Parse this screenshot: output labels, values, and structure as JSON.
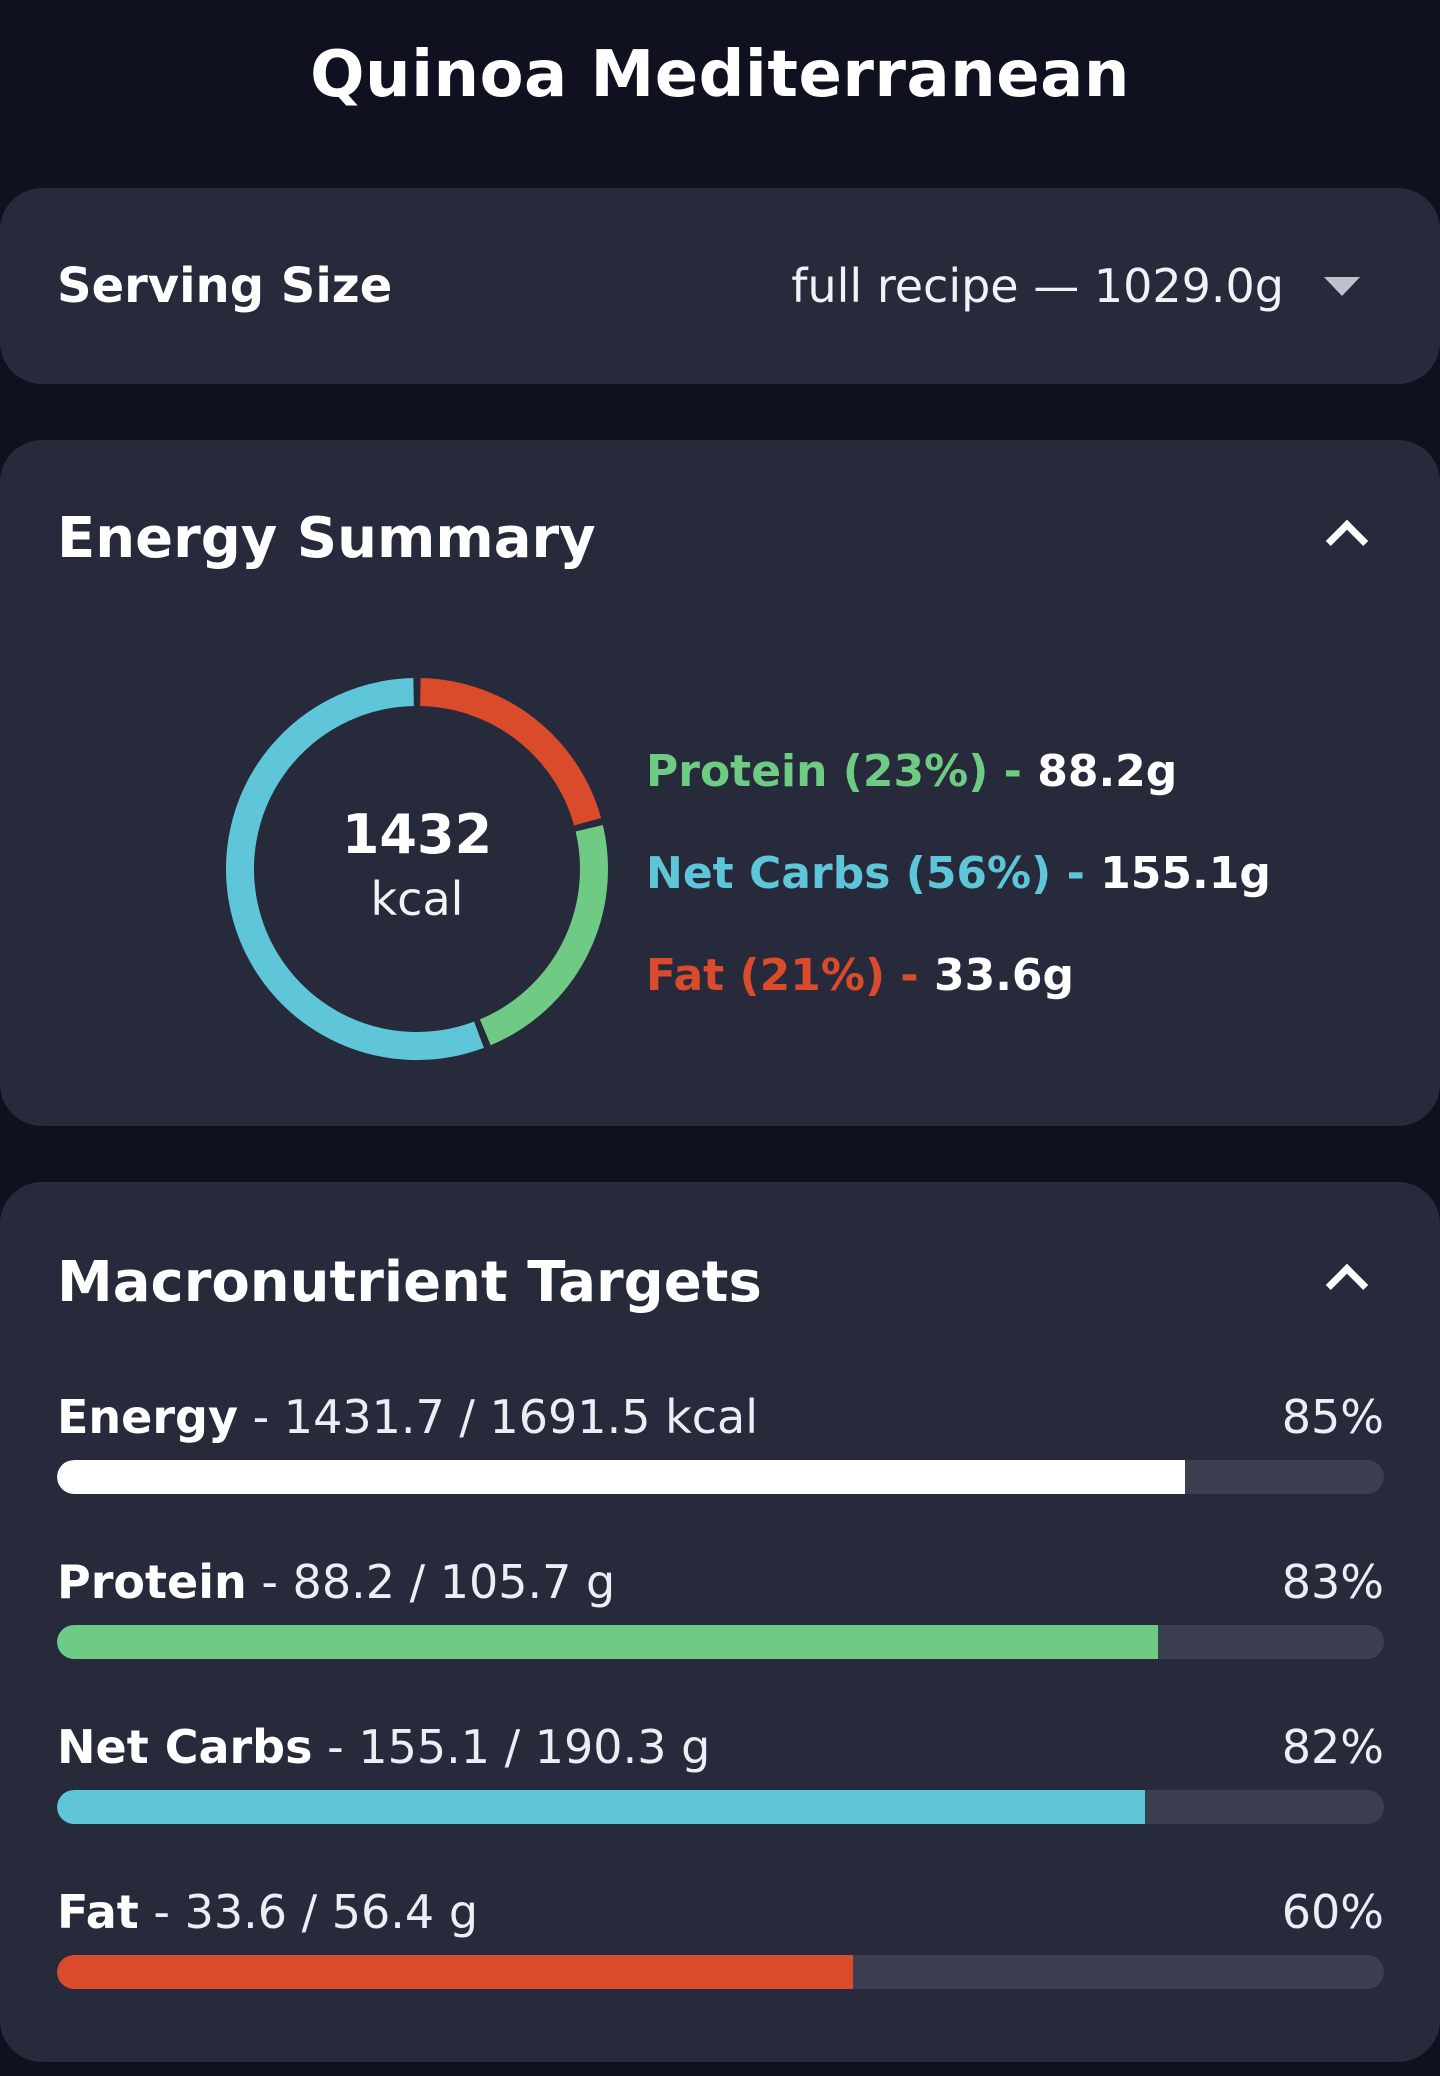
{
  "title": "Quinoa Mediterranean",
  "serving": {
    "label": "Serving Size",
    "value": "full recipe  — 1029.0g"
  },
  "energy_summary": {
    "title": "Energy Summary",
    "kcal_value": "1432",
    "kcal_unit": "kcal",
    "legend": [
      {
        "label": "Protein (23%)",
        "sep": " - ",
        "amount": "88.2g",
        "color": "#6fcb84",
        "pct": 23
      },
      {
        "label": "Net Carbs (56%)",
        "sep": " - ",
        "amount": "155.1g",
        "color": "#5ec6d8",
        "pct": 56
      },
      {
        "label": "Fat (21%)",
        "sep": " - ",
        "amount": "33.6g",
        "color": "#d94b2b",
        "pct": 21
      }
    ]
  },
  "macro_targets": {
    "title": "Macronutrient Targets",
    "rows": [
      {
        "name": "Energy",
        "detail": " - 1431.7 / 1691.5 kcal",
        "pct_label": "85%",
        "fraction": 0.85,
        "color": "#ffffff"
      },
      {
        "name": "Protein",
        "detail": " - 88.2 / 105.7 g",
        "pct_label": "83%",
        "fraction": 0.83,
        "color": "#6fcb84"
      },
      {
        "name": "Net Carbs",
        "detail": " - 155.1 / 190.3 g",
        "pct_label": "82%",
        "fraction": 0.82,
        "color": "#5ec6d8"
      },
      {
        "name": "Fat",
        "detail": " - 33.6 / 56.4 g",
        "pct_label": "60%",
        "fraction": 0.6,
        "color": "#d94b2b"
      }
    ]
  }
}
